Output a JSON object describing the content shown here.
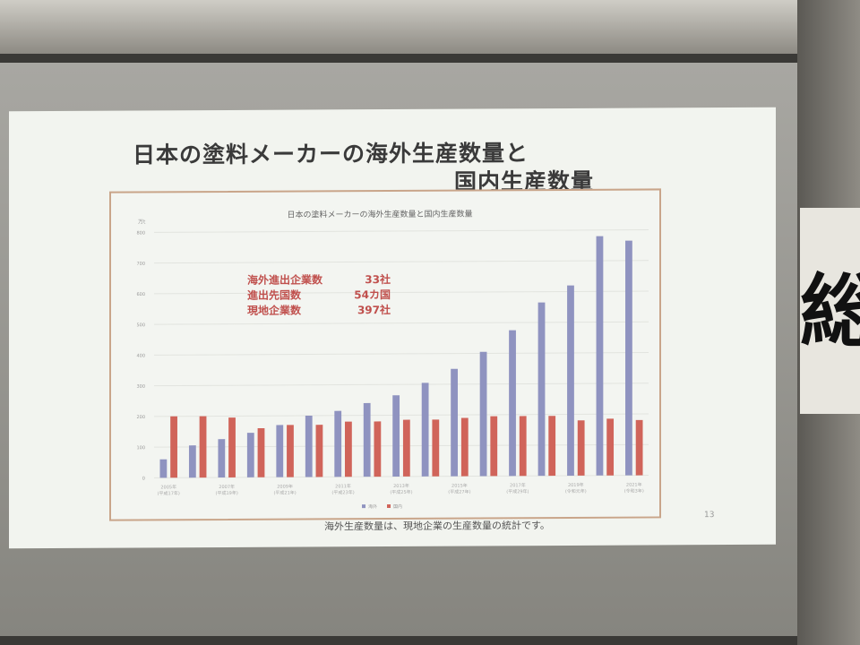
{
  "slide": {
    "title_line1": "日本の塗料メーカーの海外生産数量と",
    "title_line2": "国内生産数量",
    "footnote": "海外生産数量は、現地企業の生産数量の統計です。",
    "page_number": "13",
    "background_sign": "総"
  },
  "annotations": [
    {
      "label": "海外進出企業数",
      "value": "33社"
    },
    {
      "label": "進出先国数",
      "value": "54カ国"
    },
    {
      "label": "現地企業数",
      "value": "397社"
    }
  ],
  "chart_data": {
    "type": "bar",
    "title": "日本の塗料メーカーの海外生産数量と国内生産数量",
    "unit_label": "万t",
    "ylim": [
      0,
      800
    ],
    "yticks": [
      0,
      100,
      200,
      300,
      400,
      500,
      600,
      700,
      800
    ],
    "grid": true,
    "legend_placement": "bottom-right",
    "categories": [
      "2005",
      "2006",
      "2007",
      "2008",
      "2009",
      "2010",
      "2011",
      "2012",
      "2013",
      "2014",
      "2015",
      "2016",
      "2017",
      "2018",
      "2019",
      "2020",
      "2021"
    ],
    "tick_labels": [
      {
        "year": "2005年",
        "era": "(平成17年)"
      },
      {
        "year": "2007年",
        "era": "(平成19年)"
      },
      {
        "year": "2009年",
        "era": "(平成21年)"
      },
      {
        "year": "2011年",
        "era": "(平成23年)"
      },
      {
        "year": "2013年",
        "era": "(平成25年)"
      },
      {
        "year": "2015年",
        "era": "(平成27年)"
      },
      {
        "year": "2017年",
        "era": "(平成29年)"
      },
      {
        "year": "2019年",
        "era": "(令和元年)"
      },
      {
        "year": "2021年",
        "era": "(令和3年)"
      }
    ],
    "series": [
      {
        "name": "海外",
        "color": "#8f93c0",
        "values": [
          60,
          105,
          125,
          145,
          170,
          200,
          215,
          240,
          265,
          305,
          350,
          405,
          475,
          565,
          620,
          780,
          765
        ]
      },
      {
        "name": "国内",
        "color": "#d0645a",
        "values": [
          200,
          200,
          195,
          160,
          170,
          170,
          180,
          180,
          185,
          185,
          190,
          195,
          195,
          195,
          180,
          185,
          180
        ]
      }
    ]
  }
}
